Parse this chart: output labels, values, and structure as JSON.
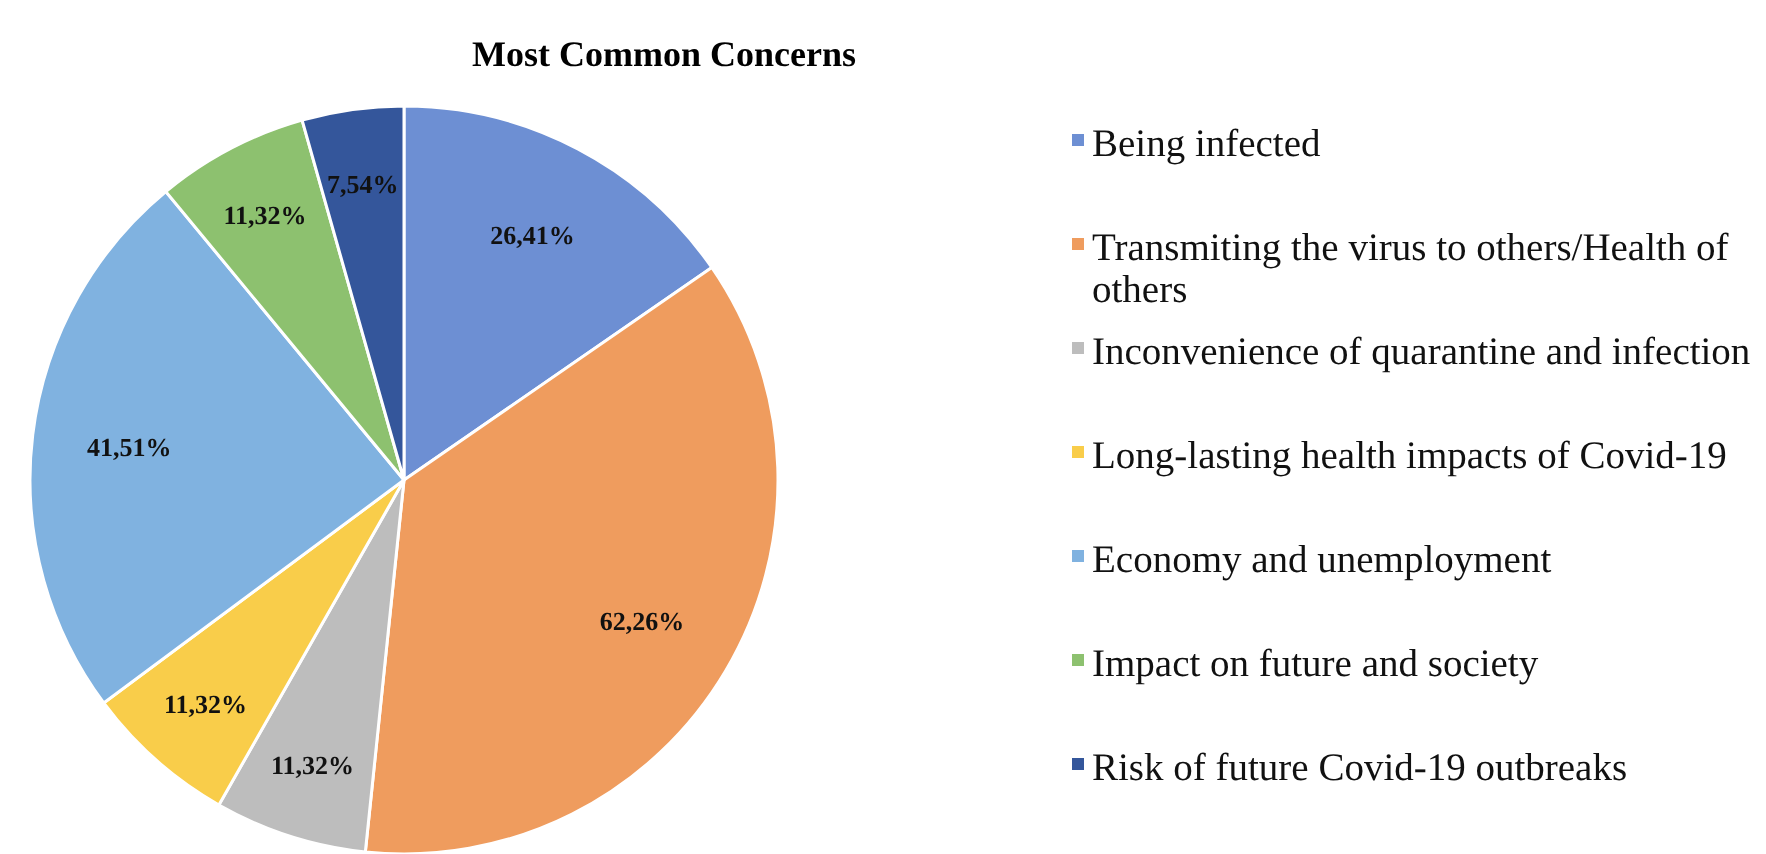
{
  "chart_data": {
    "type": "pie",
    "title": "Most Common Concerns",
    "categories": [
      "Being infected",
      "Transmiting the virus to others/Health of others",
      "Inconvenience of quarantine and infection",
      "Long-lasting health impacts of Covid-19",
      "Economy and unemployment",
      "Impact on future and society",
      "Risk of future Covid-19 outbreaks"
    ],
    "values": [
      26.41,
      62.26,
      11.32,
      11.32,
      41.51,
      11.32,
      7.54
    ],
    "value_labels": [
      "26,41%",
      "62,26%",
      "11,32%",
      "11,32%",
      "41,51%",
      "11,32%",
      "7,54%"
    ],
    "colors": [
      "#6d8fd3",
      "#ef9c5e",
      "#bdbdbd",
      "#f9cd4a",
      "#80b2e0",
      "#8dc16f",
      "#34569b"
    ],
    "legend": "right"
  }
}
